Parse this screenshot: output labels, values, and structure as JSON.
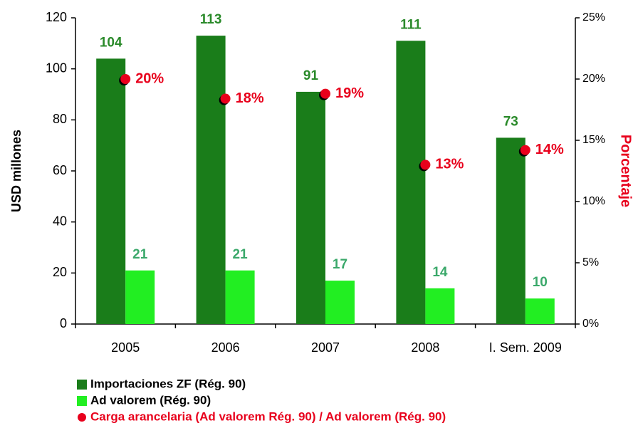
{
  "chart_data": {
    "type": "bar",
    "y_label": "USD millones",
    "y2_label": "Porcentaje",
    "categories": [
      "2005",
      "2006",
      "2007",
      "2008",
      "I. Sem. 2009"
    ],
    "series": [
      {
        "name": "Importaciones ZF (Rég. 90)",
        "color": "#1a7d1a",
        "values": [
          104,
          113,
          91,
          111,
          73
        ]
      },
      {
        "name": "Ad valorem (Rég. 90)",
        "color": "#22ee22",
        "values": [
          21,
          21,
          17,
          14,
          10
        ]
      },
      {
        "name": "Carga arancelaria (Ad valorem Rég. 90) / Ad valorem (Rég. 90)",
        "color": "#e8001c",
        "axis": "y2",
        "type": "scatter",
        "values": [
          20,
          18.4,
          18.8,
          13,
          14.2
        ],
        "value_labels": [
          "20%",
          "18%",
          "19%",
          "13%",
          "14%"
        ]
      }
    ],
    "ylim": [
      0,
      120
    ],
    "yticks": [
      0,
      20,
      40,
      60,
      80,
      100,
      120
    ],
    "y2lim": [
      0,
      25
    ],
    "y2ticks": [
      {
        "value": 0,
        "label": "0%"
      },
      {
        "value": 5,
        "label": "5%"
      },
      {
        "value": 10,
        "label": "10%"
      },
      {
        "value": 15,
        "label": "15%"
      },
      {
        "value": 20,
        "label": "20%"
      },
      {
        "value": 25,
        "label": "25%"
      }
    ],
    "grid": false
  }
}
